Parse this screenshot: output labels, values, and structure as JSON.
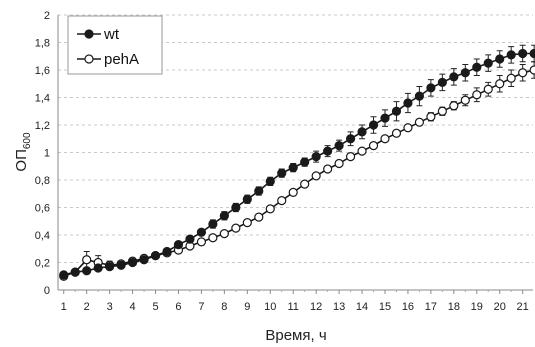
{
  "chart_data": {
    "type": "line",
    "xlabel": "Время, ч",
    "ylabel_main": "ОП",
    "ylabel_sub": "600",
    "ylim": [
      0,
      2
    ],
    "yticks": [
      "0",
      "0,2",
      "0,4",
      "0,6",
      "0,8",
      "1",
      "1,2",
      "1,4",
      "1,6",
      "1,8",
      "2"
    ],
    "xlim": [
      0.75,
      21.45
    ],
    "xticks": [
      "1",
      "2",
      "3",
      "4",
      "5",
      "6",
      "7",
      "8",
      "9",
      "10",
      "11",
      "12",
      "13",
      "14",
      "15",
      "16",
      "17",
      "18",
      "19",
      "20",
      "21"
    ],
    "grid": "horizontal-dashed",
    "legend_position": "top-left",
    "series": [
      {
        "name": "wt",
        "marker": "filled-circle",
        "color": "#1a1a1a",
        "x": [
          1,
          1.5,
          2,
          2.5,
          3,
          3.5,
          4,
          4.5,
          5,
          5.5,
          6,
          6.5,
          7,
          7.5,
          8,
          8.5,
          9,
          9.5,
          10,
          10.5,
          11,
          11.5,
          12,
          12.5,
          13,
          13.5,
          14,
          14.5,
          15,
          15.5,
          16,
          16.5,
          17,
          17.5,
          18,
          18.5,
          19,
          19.5,
          20,
          20.5,
          21,
          21.5
        ],
        "y": [
          0.11,
          0.13,
          0.14,
          0.16,
          0.17,
          0.18,
          0.2,
          0.22,
          0.25,
          0.28,
          0.33,
          0.37,
          0.42,
          0.48,
          0.54,
          0.6,
          0.66,
          0.72,
          0.79,
          0.85,
          0.89,
          0.93,
          0.97,
          1.01,
          1.05,
          1.1,
          1.15,
          1.2,
          1.25,
          1.3,
          1.36,
          1.41,
          1.47,
          1.51,
          1.55,
          1.58,
          1.62,
          1.65,
          1.68,
          1.71,
          1.72,
          1.72
        ],
        "err": [
          0.01,
          0.01,
          0.02,
          0.02,
          0.02,
          0.02,
          0.02,
          0.02,
          0.02,
          0.02,
          0.02,
          0.02,
          0.02,
          0.03,
          0.03,
          0.03,
          0.03,
          0.03,
          0.03,
          0.03,
          0.03,
          0.03,
          0.04,
          0.04,
          0.04,
          0.05,
          0.05,
          0.06,
          0.06,
          0.07,
          0.07,
          0.07,
          0.06,
          0.06,
          0.06,
          0.06,
          0.06,
          0.06,
          0.06,
          0.06,
          0.06,
          0.06
        ]
      },
      {
        "name": "pehA",
        "marker": "open-circle",
        "color": "#1a1a1a",
        "x": [
          1,
          1.5,
          2,
          2.5,
          3,
          3.5,
          4,
          4.5,
          5,
          5.5,
          6,
          6.5,
          7,
          7.5,
          8,
          8.5,
          9,
          9.5,
          10,
          10.5,
          11,
          11.5,
          12,
          12.5,
          13,
          13.5,
          14,
          14.5,
          15,
          15.5,
          16,
          16.5,
          17,
          17.5,
          18,
          18.5,
          19,
          19.5,
          20,
          20.5,
          21,
          21.5
        ],
        "y": [
          0.1,
          0.13,
          0.22,
          0.2,
          0.18,
          0.19,
          0.21,
          0.23,
          0.25,
          0.27,
          0.29,
          0.32,
          0.35,
          0.38,
          0.41,
          0.45,
          0.49,
          0.53,
          0.59,
          0.65,
          0.71,
          0.77,
          0.83,
          0.88,
          0.92,
          0.97,
          1.01,
          1.05,
          1.1,
          1.14,
          1.18,
          1.22,
          1.26,
          1.3,
          1.34,
          1.38,
          1.42,
          1.46,
          1.5,
          1.54,
          1.58,
          1.6
        ],
        "err": [
          0.01,
          0.02,
          0.06,
          0.05,
          0.03,
          0.02,
          0.02,
          0.02,
          0.02,
          0.02,
          0.02,
          0.02,
          0.02,
          0.02,
          0.02,
          0.02,
          0.02,
          0.02,
          0.02,
          0.02,
          0.02,
          0.02,
          0.02,
          0.02,
          0.02,
          0.02,
          0.02,
          0.02,
          0.02,
          0.02,
          0.02,
          0.02,
          0.03,
          0.03,
          0.03,
          0.04,
          0.05,
          0.05,
          0.06,
          0.06,
          0.06,
          0.06
        ]
      }
    ]
  }
}
